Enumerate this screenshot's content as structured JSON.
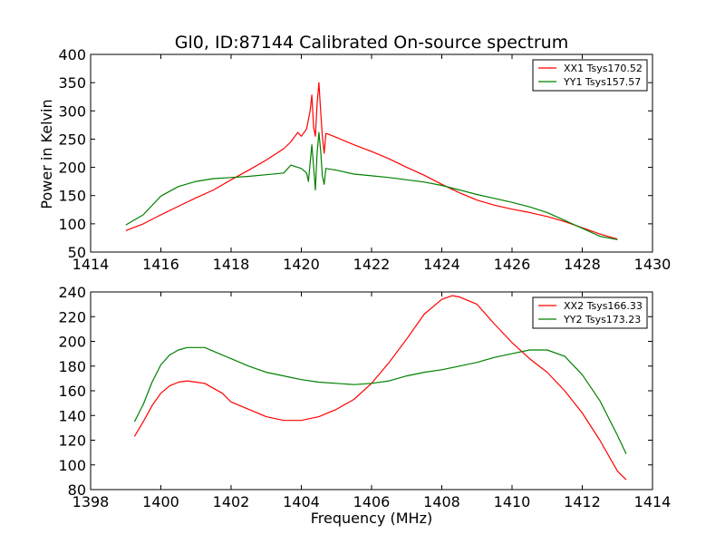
{
  "chart_data": [
    {
      "type": "line",
      "title": "Gl0, ID:87144 Calibrated On-source spectrum",
      "xlabel": "",
      "ylabel": "Power in Kelvin",
      "xlim": [
        1414,
        1430
      ],
      "ylim": [
        50,
        400
      ],
      "xticks": [
        "1414",
        "1416",
        "1418",
        "1420",
        "1422",
        "1424",
        "1426",
        "1428",
        "1430"
      ],
      "yticks": [
        "50",
        "100",
        "150",
        "200",
        "250",
        "300",
        "350",
        "400"
      ],
      "grid": false,
      "legend_position": "top-right",
      "series": [
        {
          "name": "XX1 Tsys170.52",
          "color": "#ff0000",
          "points": [
            [
              1415.0,
              88
            ],
            [
              1415.5,
              100
            ],
            [
              1416.0,
              116
            ],
            [
              1416.5,
              131
            ],
            [
              1417.0,
              146
            ],
            [
              1417.5,
              160
            ],
            [
              1418.0,
              178
            ],
            [
              1418.5,
              195
            ],
            [
              1419.0,
              213
            ],
            [
              1419.5,
              233
            ],
            [
              1419.7,
              245
            ],
            [
              1419.9,
              262
            ],
            [
              1420.0,
              255
            ],
            [
              1420.15,
              268
            ],
            [
              1420.25,
              300
            ],
            [
              1420.3,
              328
            ],
            [
              1420.35,
              270
            ],
            [
              1420.4,
              255
            ],
            [
              1420.45,
              312
            ],
            [
              1420.5,
              350
            ],
            [
              1420.55,
              300
            ],
            [
              1420.6,
              255
            ],
            [
              1420.65,
              225
            ],
            [
              1420.7,
              260
            ],
            [
              1420.8,
              258
            ],
            [
              1421.0,
              253
            ],
            [
              1421.5,
              240
            ],
            [
              1422.0,
              228
            ],
            [
              1422.5,
              215
            ],
            [
              1423.0,
              200
            ],
            [
              1423.5,
              186
            ],
            [
              1424.0,
              170
            ],
            [
              1424.5,
              155
            ],
            [
              1425.0,
              142
            ],
            [
              1425.5,
              133
            ],
            [
              1426.0,
              126
            ],
            [
              1426.5,
              120
            ],
            [
              1427.0,
              113
            ],
            [
              1427.5,
              104
            ],
            [
              1428.0,
              93
            ],
            [
              1428.5,
              82
            ],
            [
              1429.0,
              73
            ]
          ]
        },
        {
          "name": "YY1 Tsys157.57",
          "color": "#008000",
          "points": [
            [
              1415.0,
              98
            ],
            [
              1415.5,
              116
            ],
            [
              1416.0,
              149
            ],
            [
              1416.5,
              166
            ],
            [
              1417.0,
              175
            ],
            [
              1417.5,
              180
            ],
            [
              1418.0,
              182
            ],
            [
              1418.5,
              184
            ],
            [
              1419.0,
              187
            ],
            [
              1419.5,
              190
            ],
            [
              1419.7,
              204
            ],
            [
              1419.9,
              200
            ],
            [
              1420.0,
              198
            ],
            [
              1420.15,
              190
            ],
            [
              1420.2,
              175
            ],
            [
              1420.3,
              240
            ],
            [
              1420.35,
              200
            ],
            [
              1420.4,
              160
            ],
            [
              1420.45,
              225
            ],
            [
              1420.5,
              262
            ],
            [
              1420.55,
              230
            ],
            [
              1420.6,
              185
            ],
            [
              1420.65,
              170
            ],
            [
              1420.7,
              198
            ],
            [
              1421.0,
              195
            ],
            [
              1421.5,
              188
            ],
            [
              1422.0,
              185
            ],
            [
              1422.5,
              182
            ],
            [
              1423.0,
              178
            ],
            [
              1423.5,
              174
            ],
            [
              1424.0,
              168
            ],
            [
              1424.5,
              160
            ],
            [
              1425.0,
              152
            ],
            [
              1425.5,
              145
            ],
            [
              1426.0,
              138
            ],
            [
              1426.5,
              130
            ],
            [
              1427.0,
              120
            ],
            [
              1427.5,
              106
            ],
            [
              1428.0,
              92
            ],
            [
              1428.5,
              78
            ],
            [
              1429.0,
              72
            ]
          ]
        }
      ]
    },
    {
      "type": "line",
      "title": "",
      "xlabel": "Frequency (MHz)",
      "ylabel": "",
      "xlim": [
        1398,
        1414
      ],
      "ylim": [
        80,
        240
      ],
      "xticks": [
        "1398",
        "1400",
        "1402",
        "1404",
        "1406",
        "1408",
        "1410",
        "1412",
        "1414"
      ],
      "yticks": [
        "80",
        "100",
        "120",
        "140",
        "160",
        "180",
        "200",
        "220",
        "240"
      ],
      "grid": false,
      "legend_position": "top-right",
      "series": [
        {
          "name": "XX2 Tsys166.33",
          "color": "#ff0000",
          "points": [
            [
              1399.25,
              123
            ],
            [
              1399.5,
              135
            ],
            [
              1399.75,
              148
            ],
            [
              1400.0,
              158
            ],
            [
              1400.25,
              164
            ],
            [
              1400.5,
              167
            ],
            [
              1400.75,
              168
            ],
            [
              1401.0,
              167
            ],
            [
              1401.25,
              166
            ],
            [
              1401.5,
              162
            ],
            [
              1401.75,
              158
            ],
            [
              1402.0,
              151
            ],
            [
              1402.5,
              145
            ],
            [
              1403.0,
              139
            ],
            [
              1403.5,
              136
            ],
            [
              1404.0,
              136
            ],
            [
              1404.5,
              139
            ],
            [
              1405.0,
              145
            ],
            [
              1405.5,
              153
            ],
            [
              1406.0,
              166
            ],
            [
              1406.5,
              183
            ],
            [
              1407.0,
              202
            ],
            [
              1407.5,
              222
            ],
            [
              1408.0,
              234
            ],
            [
              1408.3,
              237
            ],
            [
              1408.5,
              236
            ],
            [
              1409.0,
              230
            ],
            [
              1409.5,
              214
            ],
            [
              1410.0,
              199
            ],
            [
              1410.5,
              186
            ],
            [
              1411.0,
              175
            ],
            [
              1411.5,
              160
            ],
            [
              1412.0,
              142
            ],
            [
              1412.5,
              120
            ],
            [
              1413.0,
              95
            ],
            [
              1413.25,
              88
            ]
          ]
        },
        {
          "name": "YY2 Tsys173.23",
          "color": "#008000",
          "points": [
            [
              1399.25,
              135
            ],
            [
              1399.5,
              149
            ],
            [
              1399.75,
              167
            ],
            [
              1400.0,
              181
            ],
            [
              1400.25,
              189
            ],
            [
              1400.5,
              193
            ],
            [
              1400.75,
              195
            ],
            [
              1401.0,
              195
            ],
            [
              1401.25,
              195
            ],
            [
              1401.5,
              192
            ],
            [
              1402.0,
              186
            ],
            [
              1402.5,
              180
            ],
            [
              1403.0,
              175
            ],
            [
              1403.5,
              172
            ],
            [
              1404.0,
              169
            ],
            [
              1404.5,
              167
            ],
            [
              1405.0,
              166
            ],
            [
              1405.5,
              165
            ],
            [
              1406.0,
              166
            ],
            [
              1406.5,
              168
            ],
            [
              1407.0,
              172
            ],
            [
              1407.5,
              175
            ],
            [
              1408.0,
              177
            ],
            [
              1408.5,
              180
            ],
            [
              1409.0,
              183
            ],
            [
              1409.5,
              187
            ],
            [
              1410.0,
              190
            ],
            [
              1410.5,
              193
            ],
            [
              1411.0,
              193
            ],
            [
              1411.5,
              188
            ],
            [
              1412.0,
              173
            ],
            [
              1412.5,
              152
            ],
            [
              1413.0,
              124
            ],
            [
              1413.25,
              109
            ]
          ]
        }
      ]
    }
  ]
}
